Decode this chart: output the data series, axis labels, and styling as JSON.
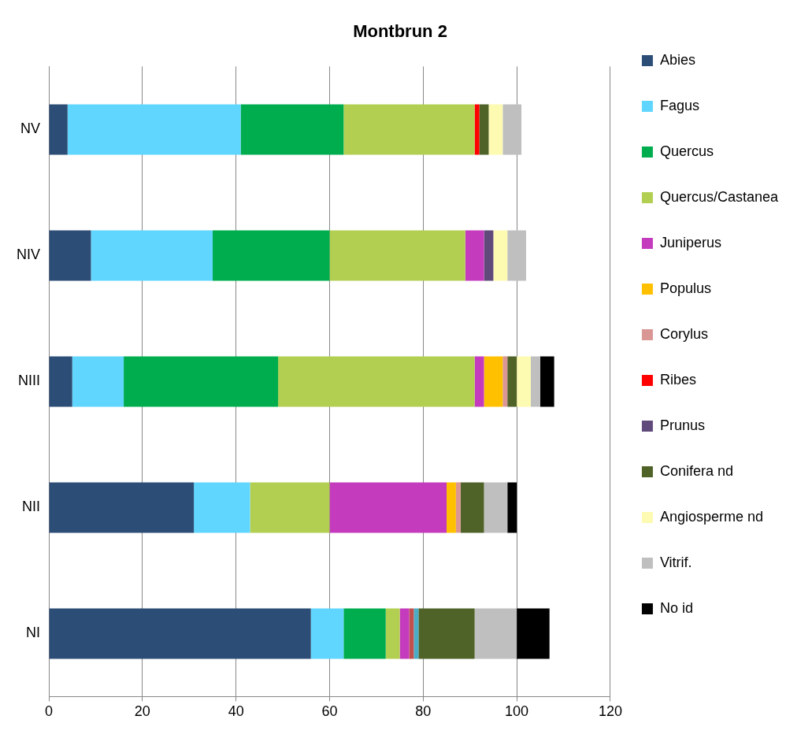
{
  "chart_data": {
    "type": "bar",
    "orientation": "horizontal",
    "stacked": true,
    "title": "Montbrun 2",
    "categories": [
      "NV",
      "NIV",
      "NIII",
      "NII",
      "NI"
    ],
    "series": [
      {
        "name": "Abies",
        "color": "#2c4d75",
        "values": [
          4,
          9,
          5,
          31,
          56
        ]
      },
      {
        "name": "Fagus",
        "color": "#60d6ff",
        "values": [
          37,
          26,
          11,
          12,
          7
        ]
      },
      {
        "name": "Quercus",
        "color": "#00ad4e",
        "values": [
          22,
          25,
          33,
          null,
          9
        ]
      },
      {
        "name": "Quercus/Castanea",
        "color": "#b2cf52",
        "values": [
          28,
          29,
          42,
          17,
          3
        ]
      },
      {
        "name": "Juniperus",
        "color": "#c43bbe",
        "values": [
          null,
          4,
          2,
          25,
          2
        ]
      },
      {
        "color": "#c0504d",
        "values": [
          null,
          null,
          null,
          null,
          1
        ]
      },
      {
        "color": "#4bacc6",
        "values": [
          null,
          null,
          null,
          null,
          1
        ]
      },
      {
        "name": "Populus",
        "color": "#ffc000",
        "values": [
          null,
          null,
          4,
          2,
          null
        ]
      },
      {
        "name": "Corylus",
        "color": "#d99694",
        "values": [
          null,
          null,
          1,
          1,
          null
        ]
      },
      {
        "name": "Ribes",
        "color": "#ff0000",
        "values": [
          1,
          null,
          null,
          null,
          null
        ]
      },
      {
        "name": "Prunus",
        "color": "#604a7b",
        "values": [
          null,
          2,
          null,
          null,
          null
        ]
      },
      {
        "name": "Conifera nd",
        "color": "#4f6228",
        "values": [
          2,
          null,
          2,
          5,
          12
        ]
      },
      {
        "name": "Angiosperme nd",
        "color": "#fdfab1",
        "values": [
          3,
          3,
          3,
          null,
          null
        ]
      },
      {
        "name": "Vitrif.",
        "color": "#bfbfbf",
        "values": [
          4,
          4,
          2,
          5,
          9
        ]
      },
      {
        "name": "No id",
        "color": "#000000",
        "values": [
          null,
          null,
          3,
          2,
          7
        ]
      }
    ],
    "xlim": [
      0,
      120
    ],
    "xticks": [
      0,
      20,
      40,
      60,
      80,
      100,
      120
    ],
    "grid": "x",
    "legend": "right"
  }
}
